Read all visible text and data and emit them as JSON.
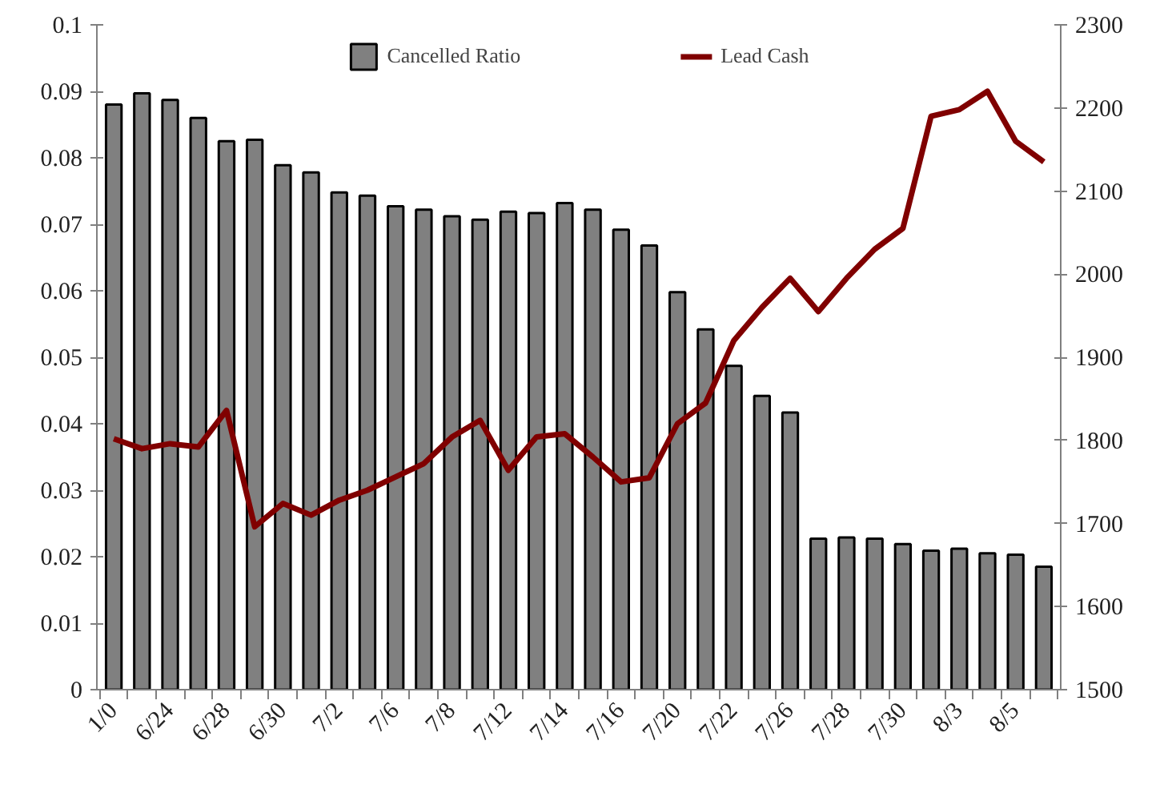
{
  "chart_data": {
    "type": "bar",
    "categories": [
      "1/0",
      null,
      "6/24",
      null,
      "6/28",
      null,
      "6/30",
      null,
      "7/2",
      null,
      "7/6",
      null,
      "7/8",
      null,
      "7/12",
      null,
      "7/14",
      null,
      "7/16",
      null,
      "7/20",
      null,
      "7/22",
      null,
      "7/26",
      null,
      "7/28",
      null,
      "7/30",
      null,
      "8/3",
      null,
      "8/5",
      null
    ],
    "series": [
      {
        "name": "Cancelled Ratio",
        "color": "#808080",
        "values": [
          0.088,
          0.0897,
          0.0887,
          0.086,
          0.0825,
          0.0827,
          0.0789,
          0.0778,
          0.0748,
          0.0743,
          0.0727,
          0.0722,
          0.0712,
          0.0707,
          0.0719,
          0.0717,
          0.0732,
          0.0722,
          0.0692,
          0.0668,
          0.0598,
          0.0542,
          0.0487,
          0.0442,
          0.0417,
          0.0227,
          0.0229,
          0.0227,
          0.0219,
          0.0209,
          0.0212,
          0.0205,
          0.0203,
          0.0185
        ]
      },
      {
        "name": "Lead Cash",
        "type": "line",
        "axis": "y2",
        "color": "#800000",
        "values": [
          1802,
          1790,
          1796,
          1792,
          1836,
          1696,
          1724,
          1710,
          1728,
          1740,
          1756,
          1772,
          1804,
          1824,
          1764,
          1804,
          1808,
          1780,
          1750,
          1755,
          1820,
          1845,
          1920,
          1960,
          1995,
          1955,
          1995,
          2030,
          2055,
          2190,
          2198,
          2220,
          2160,
          2135
        ]
      }
    ],
    "ylim": [
      0,
      0.1
    ],
    "yticks": [
      0,
      0.01,
      0.02,
      0.03,
      0.04,
      0.05,
      0.06,
      0.07,
      0.08,
      0.09,
      0.1
    ],
    "y2lim": [
      1500,
      2300
    ],
    "y2ticks": [
      1500,
      1600,
      1700,
      1800,
      1900,
      2000,
      2100,
      2200,
      2300
    ],
    "legend": "top",
    "grid": false,
    "line_style": "solid"
  }
}
